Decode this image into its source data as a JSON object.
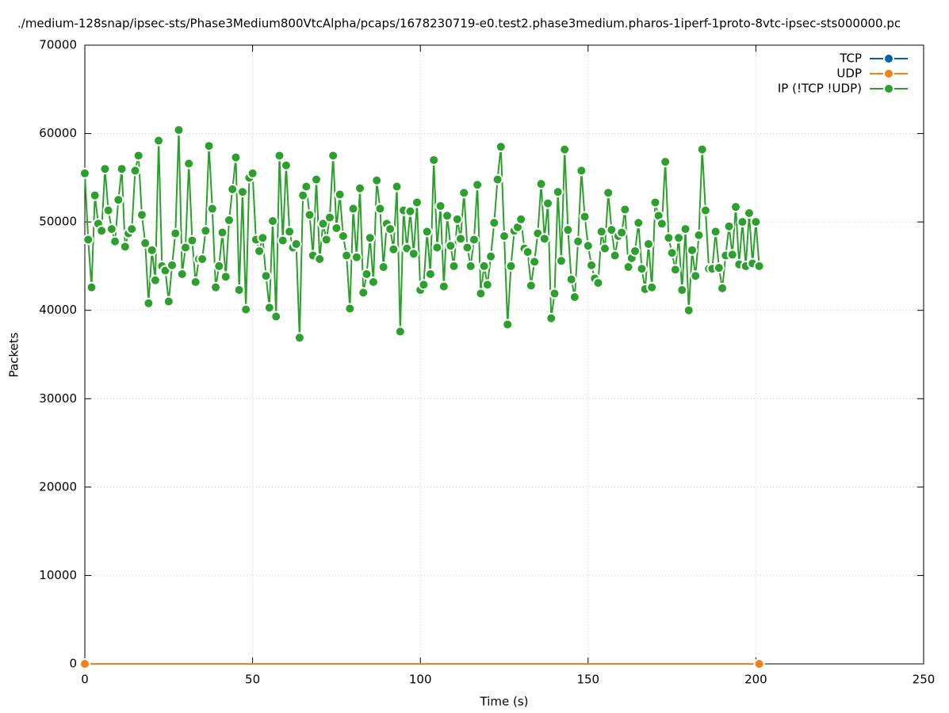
{
  "chart_data": {
    "type": "line",
    "title": "./medium-128snap/ipsec-sts/Phase3Medium800VtcAlpha/pcaps/1678230719-e0.test2.phase3medium.pharos-1iperf-1proto-8vtc-ipsec-sts000000.pc",
    "x_label": "Time (s)",
    "y_label": "Packets",
    "xlim": [
      0,
      250
    ],
    "xticks": [
      0,
      50,
      100,
      150,
      200,
      250
    ],
    "ylim": [
      0,
      70000
    ],
    "yticks": [
      0,
      10000,
      20000,
      30000,
      40000,
      50000,
      60000,
      70000
    ],
    "grid": true,
    "legend": "top-right",
    "series": [
      {
        "name": "TCP",
        "color": "#0060ad",
        "x": [
          0,
          201
        ],
        "values": [
          0,
          0
        ]
      },
      {
        "name": "UDP",
        "color": "#f28118",
        "x": [
          0,
          201
        ],
        "values": [
          0,
          0
        ]
      },
      {
        "name": "IP (!TCP  !UDP)",
        "color": "#2ca02c",
        "x": [
          0,
          1,
          2,
          3,
          4,
          5,
          6,
          7,
          8,
          9,
          10,
          11,
          12,
          13,
          14,
          15,
          16,
          17,
          18,
          19,
          20,
          21,
          22,
          23,
          24,
          25,
          26,
          27,
          28,
          29,
          30,
          31,
          32,
          33,
          34,
          35,
          36,
          37,
          38,
          39,
          40,
          41,
          42,
          43,
          44,
          45,
          46,
          47,
          48,
          49,
          50,
          51,
          52,
          53,
          54,
          55,
          56,
          57,
          58,
          59,
          60,
          61,
          62,
          63,
          64,
          65,
          66,
          67,
          68,
          69,
          70,
          71,
          72,
          73,
          74,
          75,
          76,
          77,
          78,
          79,
          80,
          81,
          82,
          83,
          84,
          85,
          86,
          87,
          88,
          89,
          90,
          91,
          92,
          93,
          94,
          95,
          96,
          97,
          98,
          99,
          100,
          101,
          102,
          103,
          104,
          105,
          106,
          107,
          108,
          109,
          110,
          111,
          112,
          113,
          114,
          115,
          116,
          117,
          118,
          119,
          120,
          121,
          122,
          123,
          124,
          125,
          126,
          127,
          128,
          129,
          130,
          131,
          132,
          133,
          134,
          135,
          136,
          137,
          138,
          139,
          140,
          141,
          142,
          143,
          144,
          145,
          146,
          147,
          148,
          149,
          150,
          151,
          152,
          153,
          154,
          155,
          156,
          157,
          158,
          159,
          160,
          161,
          162,
          163,
          164,
          165,
          166,
          167,
          168,
          169,
          170,
          171,
          172,
          173,
          174,
          175,
          176,
          177,
          178,
          179,
          180,
          181,
          182,
          183,
          184,
          185,
          186,
          187,
          188,
          189,
          190,
          191,
          192,
          193,
          194,
          195,
          196,
          197,
          198,
          199,
          200,
          201
        ],
        "values": [
          55500,
          48000,
          42600,
          53000,
          49800,
          49000,
          56000,
          51300,
          49200,
          47800,
          52500,
          56000,
          47200,
          48700,
          49200,
          55800,
          57500,
          50800,
          47600,
          40800,
          46800,
          43400,
          59200,
          45000,
          44500,
          41000,
          45100,
          48700,
          60400,
          44100,
          47100,
          56600,
          47900,
          43200,
          45800,
          45800,
          49000,
          58600,
          51500,
          42600,
          45000,
          48800,
          43800,
          50200,
          53700,
          57300,
          42300,
          53400,
          40100,
          55000,
          55500,
          48000,
          46700,
          48200,
          43900,
          40300,
          50100,
          39300,
          57500,
          47900,
          56400,
          48900,
          47100,
          47500,
          36900,
          53000,
          54000,
          50800,
          46200,
          54800,
          45800,
          49800,
          48000,
          50500,
          57500,
          49300,
          53100,
          48400,
          46200,
          40200,
          51500,
          46000,
          53800,
          42000,
          44100,
          48200,
          43200,
          54700,
          51500,
          44900,
          49800,
          49200,
          46900,
          54000,
          37600,
          51300,
          47000,
          51200,
          46400,
          52200,
          42300,
          42900,
          48900,
          44100,
          57000,
          47100,
          51800,
          42700,
          50700,
          47300,
          45000,
          50300,
          48100,
          53300,
          47100,
          45000,
          48000,
          54200,
          41900,
          45000,
          42900,
          46100,
          49900,
          54800,
          58500,
          48400,
          38400,
          45000,
          49000,
          49400,
          50300,
          47000,
          46600,
          42800,
          45500,
          48700,
          54300,
          48100,
          52100,
          39100,
          41900,
          53400,
          45600,
          58200,
          49100,
          43500,
          41500,
          47800,
          55800,
          50600,
          47300,
          45100,
          43600,
          43100,
          48900,
          47000,
          53300,
          49100,
          46200,
          48400,
          48800,
          51400,
          44900,
          45900,
          46700,
          49900,
          44700,
          42400,
          47500,
          42600,
          52200,
          50700,
          49800,
          56800,
          48200,
          46500,
          44600,
          48200,
          42300,
          49200,
          40000,
          46800,
          43900,
          48500,
          58200,
          51300,
          44700,
          44700,
          48900,
          44800,
          42500,
          46200,
          49500,
          46300,
          51700,
          45200,
          50000,
          45000,
          51000,
          45300,
          50000,
          45000
        ]
      }
    ]
  }
}
